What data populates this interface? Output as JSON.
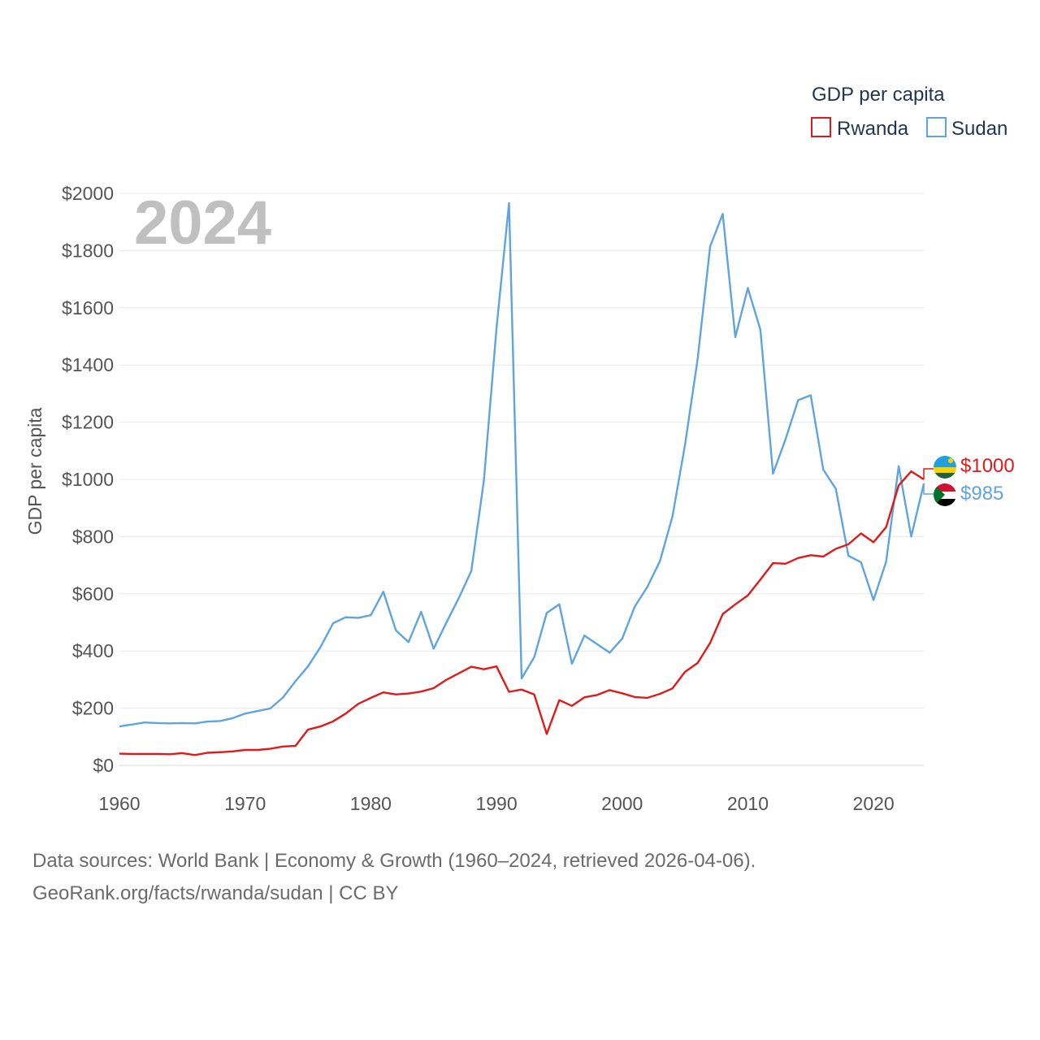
{
  "chart_data": {
    "type": "line",
    "title": "GDP per capita",
    "ylabel": "GDP per capita",
    "xlabel": "",
    "year_label": "2024",
    "xlim": [
      1960,
      2024
    ],
    "ylim": [
      0,
      2000
    ],
    "x_ticks": [
      "1960",
      "1970",
      "1980",
      "1990",
      "2000",
      "2010",
      "2020"
    ],
    "y_ticks": [
      "$0",
      "$200",
      "$400",
      "$600",
      "$800",
      "$1000",
      "$1200",
      "$1400",
      "$1600",
      "$1800",
      "$2000"
    ],
    "grid": true,
    "legend_position": "top-right",
    "x": [
      1960,
      1961,
      1962,
      1963,
      1964,
      1965,
      1966,
      1967,
      1968,
      1969,
      1970,
      1971,
      1972,
      1973,
      1974,
      1975,
      1976,
      1977,
      1978,
      1979,
      1980,
      1981,
      1982,
      1983,
      1984,
      1985,
      1986,
      1987,
      1988,
      1989,
      1990,
      1991,
      1992,
      1993,
      1994,
      1995,
      1996,
      1997,
      1998,
      1999,
      2000,
      2001,
      2002,
      2003,
      2004,
      2005,
      2006,
      2007,
      2008,
      2009,
      2010,
      2011,
      2012,
      2013,
      2014,
      2015,
      2016,
      2017,
      2018,
      2019,
      2020,
      2021,
      2022,
      2023,
      2024
    ],
    "series": [
      {
        "name": "Rwanda",
        "color": "#e01a1a",
        "end_label": "$1000",
        "values": [
          41,
          40,
          40,
          40,
          39,
          43,
          36,
          44,
          46,
          49,
          54,
          54,
          58,
          66,
          68,
          125,
          136,
          154,
          181,
          215,
          236,
          255,
          248,
          251,
          258,
          270,
          299,
          322,
          345,
          336,
          346,
          257,
          265,
          248,
          110,
          228,
          208,
          238,
          246,
          263,
          252,
          239,
          236,
          250,
          269,
          327,
          358,
          428,
          529,
          563,
          594,
          650,
          707,
          705,
          725,
          735,
          730,
          757,
          773,
          811,
          780,
          833,
          979,
          1028,
          1000
        ]
      },
      {
        "name": "Sudan",
        "color": "#5fa4e0",
        "end_label": "$985",
        "values": [
          136,
          143,
          150,
          148,
          147,
          148,
          147,
          153,
          155,
          165,
          181,
          190,
          199,
          237,
          294,
          346,
          414,
          497,
          518,
          516,
          525,
          607,
          472,
          431,
          537,
          408,
          498,
          585,
          680,
          997,
          1529,
          1966,
          304,
          378,
          533,
          563,
          355,
          454,
          424,
          394,
          443,
          555,
          624,
          714,
          870,
          1121,
          1420,
          1814,
          1928,
          1497,
          1669,
          1523,
          1020,
          1140,
          1277,
          1294,
          1034,
          967,
          733,
          710,
          578,
          712,
          1046,
          800,
          985
        ]
      }
    ]
  },
  "icons": {
    "rwanda_flag": "rwanda-flag-icon",
    "sudan_flag": "sudan-flag-icon"
  },
  "footer": {
    "line1": "Data sources: World Bank | Economy & Growth (1960–2024, retrieved 2026-04-06).",
    "line2": "GeoRank.org/facts/rwanda/sudan | CC BY"
  }
}
